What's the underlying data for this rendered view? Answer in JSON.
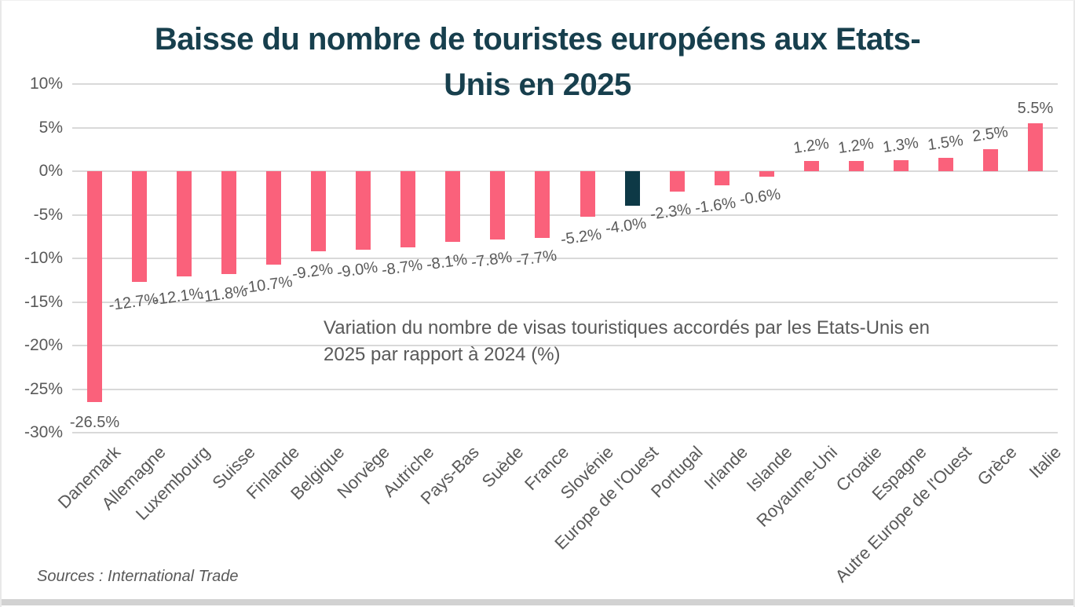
{
  "chart_data": {
    "type": "bar",
    "title": "Baisse du nombre de touristes européens aux Etats-\nUnis en 2025",
    "annotation": "Variation du nombre de visas touristiques accordés par les Etats-Unis en\n2025 par rapport à 2024 (%)",
    "source": "Sources : International Trade",
    "categories": [
      "Danemark",
      "Allemagne",
      "Luxembourg",
      "Suisse",
      "Finlande",
      "Belgique",
      "Norvège",
      "Autriche",
      "Pays-Bas",
      "Suède",
      "France",
      "Slovénie",
      "Europe de l'Ouest",
      "Portugal",
      "Irlande",
      "Islande",
      "Royaume-Uni",
      "Croatie",
      "Espagne",
      "Autre Europe de l'Ouest",
      "Grèce",
      "Italie"
    ],
    "values": [
      -26.5,
      -12.7,
      -12.1,
      -11.8,
      -10.7,
      -9.2,
      -9.0,
      -8.7,
      -8.1,
      -7.8,
      -7.7,
      -5.2,
      -4.0,
      -2.3,
      -1.6,
      -0.6,
      1.2,
      1.2,
      1.3,
      1.5,
      2.5,
      5.5
    ],
    "value_labels": [
      "-26.5%",
      "-12.7%",
      "-12.1%",
      "-11.8%",
      "-10.7%",
      "-9.2%",
      "-9.0%",
      "-8.7%",
      "-8.1%",
      "-7.8%",
      "-7.7%",
      "-5.2%",
      "-4.0%",
      "-2.3%",
      "-1.6%",
      "-0.6%",
      "1.2%",
      "1.2%",
      "1.3%",
      "1.5%",
      "2.5%",
      "5.5%"
    ],
    "highlight_category": "Europe de l'Ouest",
    "highlight_index": 12,
    "xlabel": "",
    "ylabel": "",
    "ylim": [
      -30,
      10
    ],
    "yticks": [
      10,
      5,
      0,
      -5,
      -10,
      -15,
      -20,
      -25,
      -30
    ],
    "ytick_labels": [
      "10%",
      "5%",
      "0%",
      "-5%",
      "-10%",
      "-15%",
      "-20%",
      "-25%",
      "-30%"
    ],
    "grid": true,
    "legend": false,
    "colors": {
      "bar": "#FA617B",
      "highlight_bar": "#0D3946",
      "title_text": "#173F4D",
      "axis_text": "#595959",
      "value_label_text": "#595959",
      "gridline": "#D9D9D9",
      "bottom_border": "#D2D2D2"
    }
  }
}
